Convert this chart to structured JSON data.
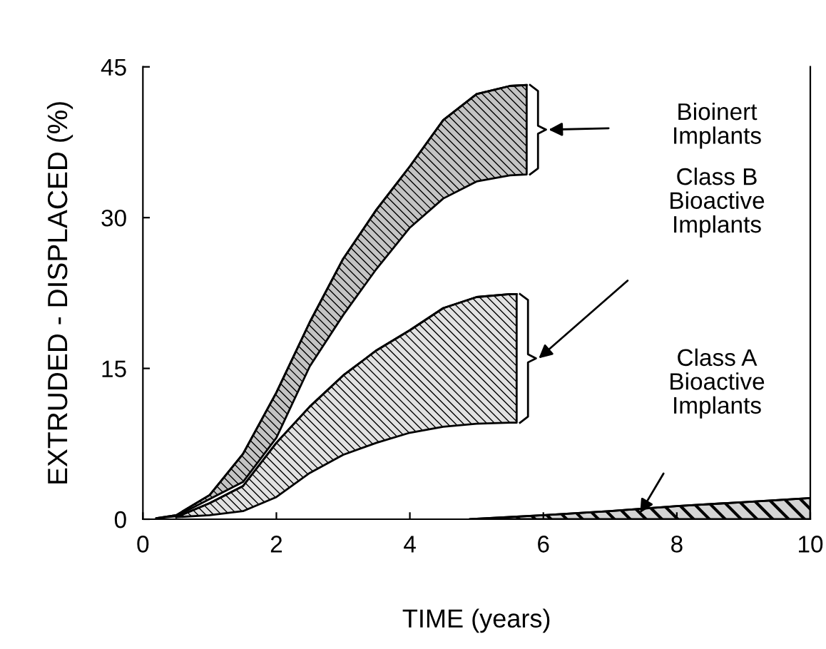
{
  "chart_data": {
    "type": "line",
    "xlabel": "TIME (years)",
    "ylabel": "EXTRUDED - DISPLACED (%)",
    "xlim": [
      0,
      10
    ],
    "ylim": [
      0,
      45
    ],
    "xticks": [
      0,
      2,
      4,
      6,
      8,
      10
    ],
    "yticks": [
      0,
      15,
      30,
      45
    ],
    "grid": false,
    "legend": false,
    "series": [
      {
        "color": "#000000",
        "x": [
          0.2,
          0.5,
          1.0,
          1.5,
          2.0,
          2.5,
          3.0,
          3.5,
          4.0,
          4.5,
          5.0,
          5.5,
          5.75
        ],
        "values": [
          0.1,
          0.4,
          2.4,
          6.5,
          12.6,
          19.6,
          25.9,
          30.8,
          35.1,
          39.7,
          42.3,
          43.1,
          43.2
        ],
        "upper": [
          0.1,
          0.4,
          2.4,
          6.5,
          12.6,
          19.6,
          25.9,
          30.8,
          35.1,
          39.7,
          42.3,
          43.1,
          43.2
        ],
        "lower": [
          0.1,
          0.3,
          2.0,
          3.7,
          8.1,
          15.2,
          20.3,
          24.9,
          29.0,
          31.9,
          33.6,
          34.2,
          34.3
        ]
      },
      {
        "color": "#000000",
        "x": [
          0.5,
          1.0,
          1.5,
          2.0,
          2.5,
          3.0,
          3.5,
          4.0,
          4.5,
          5.0,
          5.5,
          5.6
        ],
        "values": [
          0.2,
          1.6,
          3.3,
          7.6,
          11.2,
          14.3,
          16.8,
          18.8,
          21.0,
          22.1,
          22.4,
          22.4
        ],
        "upper": [
          0.2,
          1.6,
          3.3,
          7.6,
          11.2,
          14.3,
          16.8,
          18.8,
          21.0,
          22.1,
          22.4,
          22.4
        ],
        "lower": [
          0.2,
          0.4,
          0.8,
          2.2,
          4.6,
          6.4,
          7.6,
          8.6,
          9.2,
          9.5,
          9.6,
          9.6
        ]
      },
      {
        "color": "#000000",
        "x": [
          4.9,
          6,
          7,
          8,
          9,
          10
        ],
        "values": [
          0,
          0.4,
          0.8,
          1.3,
          1.7,
          2.1
        ],
        "upper": [
          0,
          0.4,
          0.8,
          1.3,
          1.7,
          2.1
        ],
        "lower": [
          0,
          0,
          0,
          0,
          0,
          0
        ]
      }
    ],
    "annotations": [
      "Bioinert\nImplants",
      "Class B\nBioactive\nImplants",
      "Class A\nBioactive\nImplants"
    ]
  }
}
